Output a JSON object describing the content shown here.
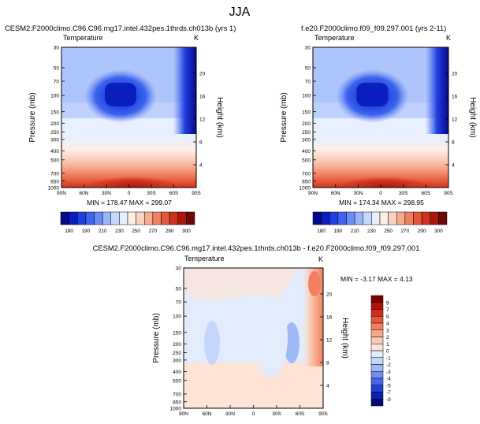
{
  "chart_data": {
    "type": "heatmap",
    "figure_title": "JJA",
    "panels": [
      {
        "id": "model",
        "title": "CESM2.F2000climo.C96.C96.mg17.intel.432pes.1thrds.ch013b (yrs 1)",
        "variable": "Temperature",
        "units": "K",
        "xlabel": "",
        "ylabel": "Pressure (mb)",
        "y2label": "Height (km)",
        "x_ticks": [
          "90N",
          "60N",
          "30N",
          "0",
          "30S",
          "60S",
          "90S"
        ],
        "y_ticks": [
          "30",
          "50",
          "70",
          "100",
          "150",
          "200",
          "250",
          "300",
          "400",
          "500",
          "700",
          "850",
          "1000"
        ],
        "y2_ticks": [
          "20",
          "16",
          "12",
          "8",
          "4"
        ],
        "stats": "MIN = 178.47  MAX = 299.07",
        "min": 178.47,
        "max": 299.07
      },
      {
        "id": "obs",
        "title": "f.e20.F2000climo.f09_f09.297.001 (yrs 2-11)",
        "variable": "Temperature",
        "units": "K",
        "xlabel": "",
        "ylabel": "Pressure (mb)",
        "y2label": "Height (km)",
        "x_ticks": [
          "90N",
          "60N",
          "30N",
          "0",
          "30S",
          "60S",
          "90S"
        ],
        "y_ticks": [
          "30",
          "50",
          "70",
          "100",
          "150",
          "200",
          "250",
          "300",
          "400",
          "500",
          "700",
          "850",
          "1000"
        ],
        "y2_ticks": [
          "20",
          "16",
          "12",
          "8",
          "4"
        ],
        "stats": "MIN = 174.34  MAX = 298.95",
        "min": 174.34,
        "max": 298.95
      },
      {
        "id": "diff",
        "title": "CESM2.F2000climo.C96.C96.mg17.intel.432pes.1thrds.ch013b - f.e20.F2000climo.f09_f09.297.001",
        "variable": "Temperature",
        "units": "K",
        "xlabel": "",
        "ylabel": "Pressure (mb)",
        "y2label": "Height (km)",
        "x_ticks": [
          "90N",
          "60N",
          "30N",
          "0",
          "30S",
          "60S",
          "90S"
        ],
        "y_ticks": [
          "30",
          "50",
          "70",
          "100",
          "150",
          "200",
          "250",
          "300",
          "400",
          "500",
          "700",
          "850",
          "1000"
        ],
        "y2_ticks": [
          "20",
          "16",
          "12",
          "8",
          "4"
        ],
        "stats": "MIN = -3.17  MAX =  4.13",
        "min": -3.17,
        "max": 4.13
      }
    ],
    "colorbar_abs": {
      "labels": [
        "180",
        "190",
        "210",
        "230",
        "250",
        "270",
        "290",
        "300"
      ],
      "colors": [
        "#08088a",
        "#0a1ec0",
        "#1f3fe0",
        "#3d64ee",
        "#6a8df5",
        "#9ab6fa",
        "#c6d8fd",
        "#e8effe",
        "#fdeee6",
        "#fbd2bf",
        "#f6ac8e",
        "#ef8160",
        "#e3573a",
        "#d0311d",
        "#a8160c",
        "#6e0606"
      ]
    },
    "colorbar_diff": {
      "labels": [
        "9",
        "7",
        "5",
        "4",
        "3",
        "2",
        "1",
        "0",
        "-1",
        "-2",
        "-3",
        "-4",
        "-5",
        "-7",
        "-9"
      ],
      "colors": [
        "#7a0000",
        "#b0110b",
        "#d22f1a",
        "#e8583a",
        "#f2805f",
        "#f6a98a",
        "#f9c9b2",
        "#fde4d6",
        "#e3ecfd",
        "#c4d6fb",
        "#9db9f6",
        "#708ff0",
        "#4565e6",
        "#1f3fd6",
        "#0b20b0",
        "#050a7a"
      ]
    }
  }
}
